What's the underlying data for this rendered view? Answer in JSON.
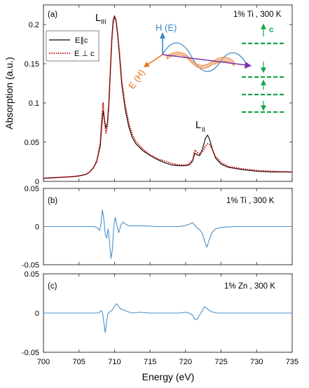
{
  "chart_data": [
    {
      "type": "line",
      "panel_label": "(a)",
      "annotation": "1% Ti , 300 K",
      "ylabel": "Absorption (a.u.)",
      "xlim": [
        700,
        735
      ],
      "ylim": [
        0,
        0.225
      ],
      "yticks": [
        "0",
        "0.05",
        "0.1",
        "0.15",
        "0.2"
      ],
      "ytick_values": [
        0,
        0.05,
        0.1,
        0.15,
        0.2
      ],
      "edge_labels": [
        {
          "main": "L",
          "sub": "III",
          "x": 709.95,
          "y": 0.212
        },
        {
          "main": "L",
          "sub": "II",
          "x": 722.9,
          "y": 0.065
        }
      ],
      "series": [
        {
          "name": "E∥c",
          "color": "#000000",
          "style": "solid",
          "x": [
            700,
            702,
            704,
            705,
            706,
            706.5,
            707,
            707.5,
            708,
            708.2,
            708.4,
            708.6,
            708.8,
            709.0,
            709.2,
            709.4,
            709.6,
            709.8,
            710.0,
            710.2,
            710.4,
            710.7,
            711,
            711.5,
            712,
            712.5,
            713,
            714,
            715,
            716,
            717,
            718,
            719,
            720,
            720.5,
            721,
            721.3,
            721.6,
            722,
            722.4,
            722.8,
            723.1,
            723.4,
            723.8,
            724.2,
            725,
            726,
            728,
            730,
            732,
            735
          ],
          "y": [
            0.004,
            0.005,
            0.006,
            0.007,
            0.009,
            0.012,
            0.017,
            0.025,
            0.045,
            0.07,
            0.09,
            0.078,
            0.068,
            0.075,
            0.1,
            0.14,
            0.18,
            0.205,
            0.211,
            0.205,
            0.19,
            0.16,
            0.125,
            0.092,
            0.07,
            0.056,
            0.048,
            0.039,
            0.033,
            0.028,
            0.024,
            0.021,
            0.02,
            0.02,
            0.021,
            0.026,
            0.036,
            0.034,
            0.033,
            0.042,
            0.055,
            0.059,
            0.053,
            0.04,
            0.03,
            0.022,
            0.018,
            0.015,
            0.013,
            0.012,
            0.012
          ]
        },
        {
          "name": "E ⊥ c",
          "color": "#cc0000",
          "style": "dotted",
          "x": [
            700,
            702,
            704,
            705,
            706,
            706.5,
            707,
            707.5,
            708,
            708.2,
            708.4,
            708.6,
            708.8,
            709.0,
            709.2,
            709.4,
            709.6,
            709.8,
            710.0,
            710.2,
            710.4,
            710.7,
            711,
            711.5,
            712,
            712.5,
            713,
            714,
            715,
            716,
            717,
            718,
            719,
            720,
            720.5,
            721,
            721.3,
            721.6,
            722,
            722.4,
            722.8,
            723.1,
            723.4,
            723.8,
            724.2,
            725,
            726,
            728,
            730,
            732,
            735
          ],
          "y": [
            0.004,
            0.005,
            0.006,
            0.007,
            0.009,
            0.012,
            0.017,
            0.026,
            0.05,
            0.08,
            0.1,
            0.074,
            0.062,
            0.07,
            0.095,
            0.135,
            0.175,
            0.2,
            0.209,
            0.206,
            0.193,
            0.165,
            0.13,
            0.098,
            0.075,
            0.06,
            0.051,
            0.041,
            0.034,
            0.029,
            0.026,
            0.023,
            0.021,
            0.021,
            0.022,
            0.028,
            0.04,
            0.037,
            0.035,
            0.038,
            0.045,
            0.048,
            0.047,
            0.04,
            0.032,
            0.024,
            0.019,
            0.016,
            0.014,
            0.013,
            0.012
          ]
        }
      ],
      "legend": {
        "position": "top-left"
      },
      "inset": {
        "labels": {
          "h": "H (E)",
          "e": "E (H)",
          "c": "c"
        },
        "colors": {
          "h": "#3a86c8",
          "e": "#e8731e",
          "wave_blue": "#3a86c8",
          "wave_orange": "#e8731e",
          "arrow": "#7b35a8",
          "layers": "#17a34a"
        }
      }
    },
    {
      "type": "line",
      "panel_label": "(b)",
      "annotation": "1% Ti , 300 K",
      "xlim": [
        700,
        735
      ],
      "ylim": [
        -0.05,
        0.05
      ],
      "yticks": [
        "0.05",
        "0",
        "-0.05"
      ],
      "ytick_values": [
        0.05,
        0,
        -0.05
      ],
      "series": [
        {
          "color": "#4a90c8",
          "x": [
            700,
            705,
            706,
            707,
            707.5,
            707.9,
            708.1,
            708.3,
            708.5,
            708.7,
            708.9,
            709.1,
            709.3,
            709.5,
            709.7,
            709.9,
            710.1,
            710.3,
            710.6,
            710.9,
            711.2,
            711.6,
            712,
            713,
            714,
            716,
            718,
            719,
            719.8,
            720.5,
            721,
            721.3,
            721.6,
            722,
            722.4,
            722.7,
            723,
            723.3,
            723.7,
            724.2,
            725,
            727,
            730,
            735
          ],
          "y": [
            0,
            0,
            0,
            0,
            -0.001,
            -0.005,
            0.004,
            0.022,
            0.01,
            -0.01,
            -0.015,
            -0.003,
            -0.02,
            -0.042,
            -0.03,
            0.0,
            0.012,
            0.003,
            -0.008,
            0.002,
            0.006,
            0.003,
            0.001,
            0.001,
            0.001,
            0.0,
            0.0,
            0.0,
            0.001,
            0.003,
            0.005,
            0.002,
            -0.002,
            -0.004,
            -0.01,
            -0.02,
            -0.027,
            -0.018,
            -0.008,
            -0.003,
            -0.001,
            0,
            0,
            0
          ]
        }
      ]
    },
    {
      "type": "line",
      "panel_label": "(c)",
      "annotation": "1% Zn , 300 K",
      "xlabel": "Energy (eV)",
      "xlim": [
        700,
        735
      ],
      "ylim": [
        -0.05,
        0.05
      ],
      "xticks": [
        "700",
        "705",
        "710",
        "715",
        "720",
        "725",
        "730",
        "735"
      ],
      "xtick_values": [
        700,
        705,
        710,
        715,
        720,
        725,
        730,
        735
      ],
      "yticks": [
        "0.05",
        "0",
        "-0.05"
      ],
      "ytick_values": [
        0.05,
        0,
        -0.05
      ],
      "series": [
        {
          "color": "#4a90c8",
          "x": [
            700,
            705,
            706,
            707,
            707.5,
            707.9,
            708.1,
            708.3,
            708.5,
            708.7,
            708.9,
            709.1,
            709.4,
            709.7,
            710.0,
            710.3,
            710.6,
            710.9,
            711.3,
            711.8,
            712.5,
            713.5,
            715,
            717,
            719,
            720,
            720.5,
            721,
            721.3,
            721.6,
            722,
            722.4,
            722.7,
            723,
            723.4,
            723.9,
            724.5,
            725.5,
            727,
            730,
            735
          ],
          "y": [
            0,
            0,
            0,
            0,
            0,
            0.001,
            0.003,
            0.001,
            -0.012,
            -0.025,
            -0.01,
            0,
            0.002,
            0.004,
            0.009,
            0.012,
            0.008,
            0.005,
            0.004,
            0.002,
            0.0,
            0.001,
            0,
            0,
            0,
            0.001,
            0.0,
            -0.003,
            -0.008,
            -0.008,
            -0.002,
            0.004,
            0.008,
            0.006,
            0.003,
            0.001,
            0,
            0,
            0,
            0,
            0
          ]
        }
      ]
    }
  ],
  "colors": {
    "axis": "#000000",
    "frame": "#222222"
  }
}
